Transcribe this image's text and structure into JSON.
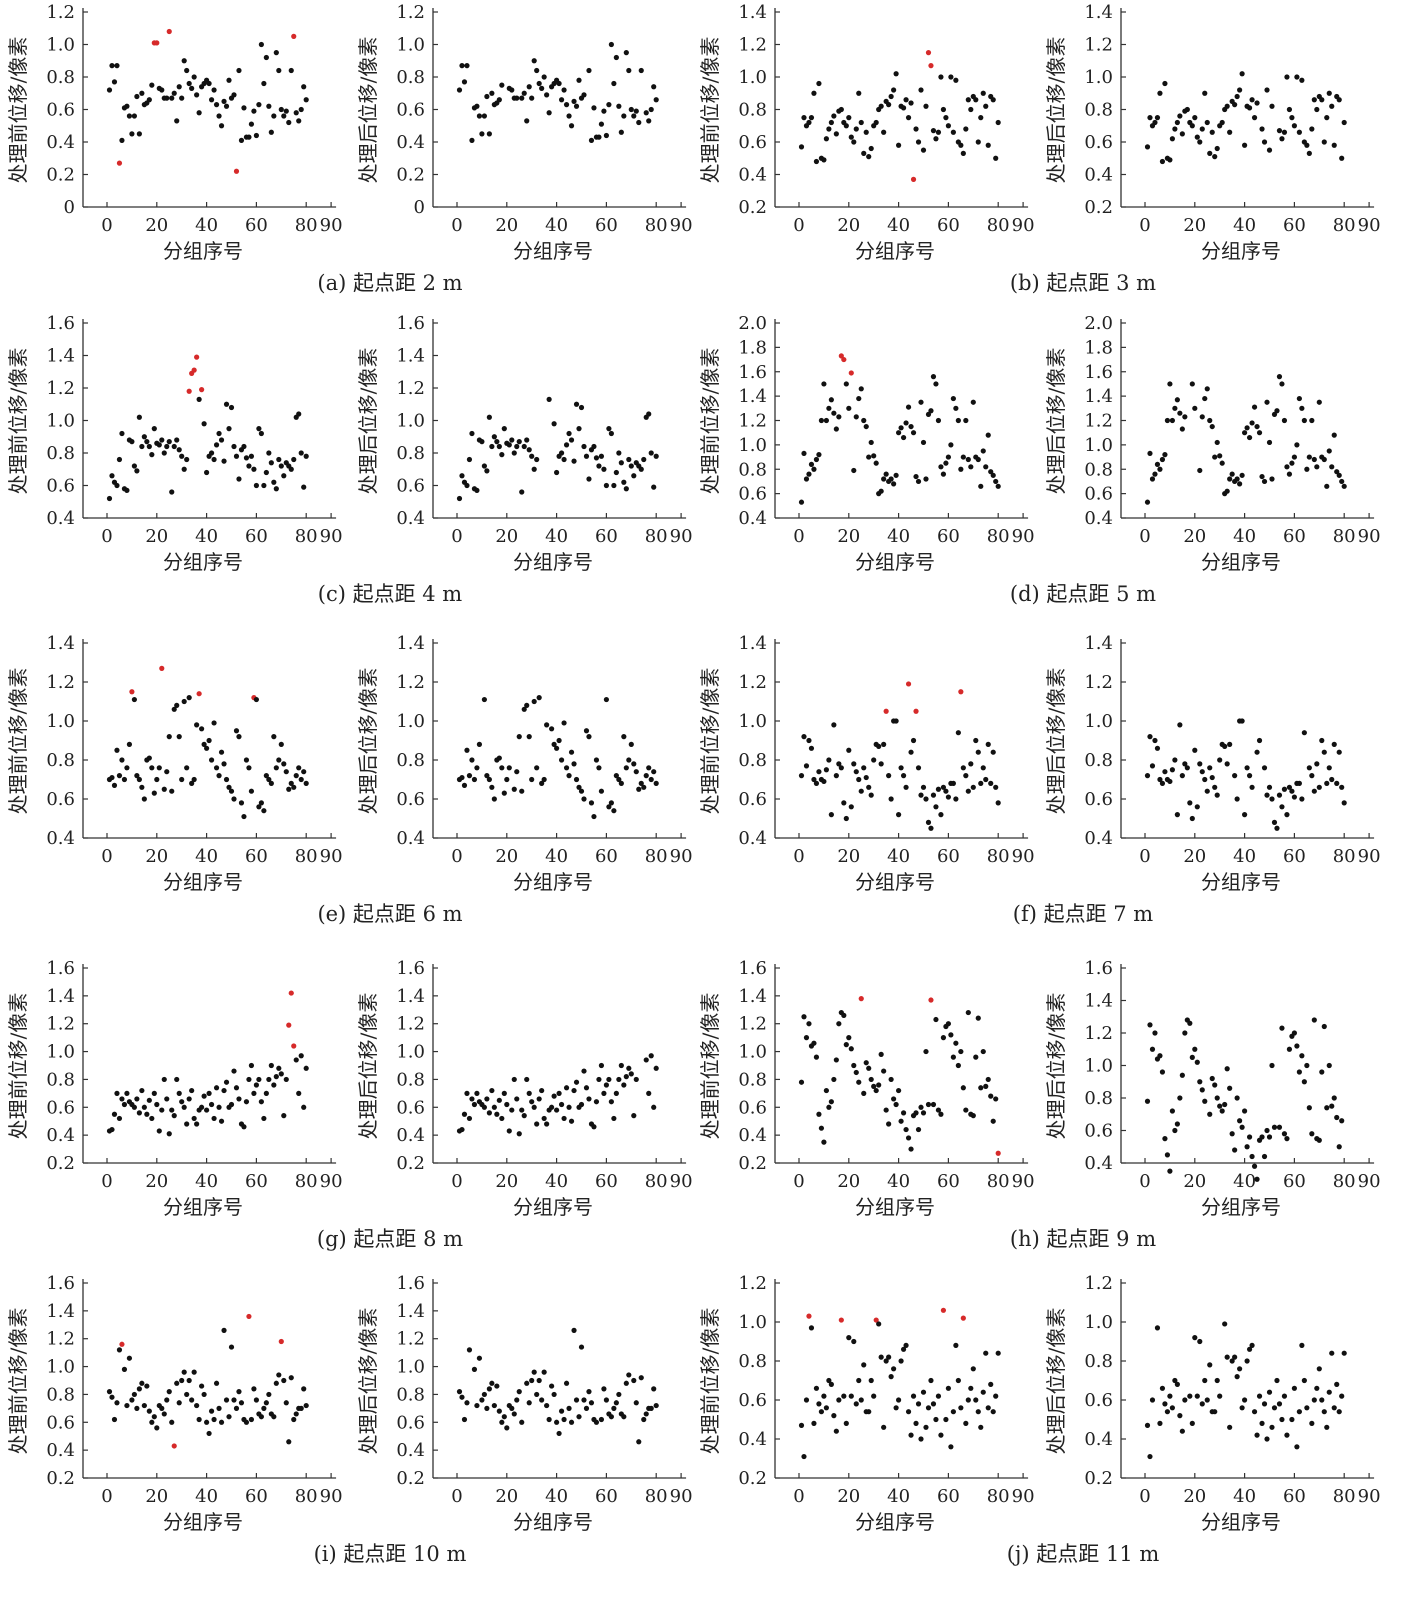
{
  "chart_data": {
    "type": "scatter",
    "xlabel": "分组序号",
    "ylabel_before": "处理前位移/像素",
    "ylabel_after": "处理后位移/像素",
    "xticks": [
      0,
      20,
      40,
      60,
      80,
      90
    ],
    "xlim": [
      -10,
      92
    ],
    "normal_color": "#111111",
    "outlier_color": "#d62a2a",
    "note": "x values are group numbers 1..80; after-panels show the before data with the outlier points removed",
    "panels": [
      {
        "caption": "(a) 起点距 2 m",
        "ylim_before": [
          0,
          1.2
        ],
        "ylim_after": [
          0,
          1.2
        ],
        "step": 0.2,
        "outliers": [
          5,
          19,
          20,
          25,
          52,
          75
        ],
        "values": [
          0.72,
          0.87,
          0.77,
          0.87,
          0.27,
          0.41,
          0.61,
          0.62,
          0.56,
          0.45,
          0.56,
          0.68,
          0.45,
          0.7,
          0.63,
          0.64,
          0.66,
          0.75,
          1.01,
          1.01,
          0.73,
          0.72,
          0.67,
          0.67,
          1.08,
          0.67,
          0.7,
          0.53,
          0.74,
          0.67,
          0.9,
          0.84,
          0.76,
          0.73,
          0.8,
          0.69,
          0.58,
          0.74,
          0.76,
          0.78,
          0.76,
          0.66,
          0.72,
          0.63,
          0.56,
          0.5,
          0.65,
          0.62,
          0.78,
          0.67,
          0.69,
          0.22,
          0.84,
          0.41,
          0.61,
          0.43,
          0.43,
          0.51,
          0.59,
          0.44,
          0.63,
          1.0,
          0.76,
          0.92,
          0.62,
          0.46,
          0.56,
          0.95,
          0.84,
          0.6,
          0.56,
          0.59,
          0.52,
          0.84,
          1.05,
          0.58,
          0.53,
          0.6,
          0.74,
          0.66
        ]
      },
      {
        "caption": "(b) 起点距 3 m",
        "ylim_before": [
          0.2,
          1.4
        ],
        "ylim_after": [
          0.2,
          1.4
        ],
        "step": 0.2,
        "outliers": [
          46,
          52,
          53
        ],
        "values": [
          0.57,
          0.75,
          0.7,
          0.72,
          0.75,
          0.9,
          0.48,
          0.96,
          0.5,
          0.49,
          0.62,
          0.68,
          0.72,
          0.76,
          0.65,
          0.79,
          0.8,
          0.72,
          0.7,
          0.75,
          0.63,
          0.6,
          0.68,
          0.9,
          0.72,
          0.53,
          0.66,
          0.51,
          0.56,
          0.7,
          0.72,
          0.8,
          0.82,
          0.66,
          0.85,
          0.83,
          0.88,
          0.92,
          1.02,
          0.58,
          0.82,
          0.81,
          0.86,
          0.75,
          0.84,
          0.37,
          0.68,
          0.6,
          0.92,
          0.55,
          0.82,
          1.15,
          1.07,
          0.67,
          0.62,
          0.66,
          1.0,
          0.8,
          0.75,
          0.7,
          1.0,
          0.66,
          0.98,
          0.6,
          0.58,
          0.53,
          0.68,
          0.86,
          0.8,
          0.88,
          0.86,
          0.6,
          0.75,
          0.9,
          0.82,
          0.58,
          0.88,
          0.86,
          0.5,
          0.72
        ]
      },
      {
        "caption": "(c) 起点距 4 m",
        "ylim_before": [
          0.4,
          1.6
        ],
        "ylim_after": [
          0.4,
          1.6
        ],
        "step": 0.2,
        "outliers": [
          33,
          34,
          35,
          36,
          38
        ],
        "values": [
          0.52,
          0.66,
          0.62,
          0.6,
          0.76,
          0.92,
          0.58,
          0.57,
          0.88,
          0.87,
          0.72,
          0.69,
          1.02,
          0.84,
          0.9,
          0.87,
          0.84,
          0.79,
          0.95,
          0.86,
          0.85,
          0.88,
          0.8,
          0.84,
          0.87,
          0.56,
          0.84,
          0.88,
          0.82,
          0.78,
          0.7,
          0.76,
          1.18,
          1.29,
          1.31,
          1.39,
          1.13,
          1.19,
          0.98,
          0.68,
          0.78,
          0.8,
          0.76,
          0.85,
          0.92,
          0.88,
          0.75,
          1.1,
          0.95,
          1.08,
          0.84,
          0.78,
          0.64,
          0.82,
          0.84,
          0.77,
          0.72,
          0.78,
          0.7,
          0.6,
          0.95,
          0.92,
          0.6,
          0.68,
          0.8,
          0.74,
          0.62,
          0.58,
          0.76,
          0.72,
          0.66,
          0.74,
          0.72,
          0.7,
          0.76,
          1.02,
          1.04,
          0.8,
          0.59,
          0.78
        ]
      },
      {
        "caption": "(d) 起点距 5 m",
        "ylim_before": [
          0.4,
          2.0
        ],
        "ylim_after": [
          0.4,
          2.0
        ],
        "step": 0.2,
        "outliers": [
          17,
          18,
          21
        ],
        "values": [
          0.53,
          0.93,
          0.72,
          0.76,
          0.84,
          0.8,
          0.88,
          0.92,
          1.2,
          1.5,
          1.2,
          1.3,
          1.37,
          1.26,
          1.13,
          1.23,
          1.73,
          1.7,
          1.5,
          1.3,
          1.59,
          0.79,
          1.23,
          1.38,
          1.46,
          1.2,
          1.15,
          0.9,
          1.02,
          0.91,
          0.85,
          0.6,
          0.62,
          0.72,
          0.76,
          0.7,
          0.72,
          0.68,
          0.75,
          1.1,
          1.14,
          1.06,
          1.18,
          1.31,
          1.15,
          1.1,
          0.74,
          0.7,
          1.35,
          1.02,
          0.72,
          1.25,
          1.28,
          1.56,
          1.5,
          1.2,
          0.82,
          0.76,
          0.85,
          0.9,
          1.0,
          1.38,
          1.3,
          1.2,
          0.8,
          0.9,
          1.2,
          0.88,
          0.82,
          1.35,
          0.9,
          0.88,
          0.66,
          0.95,
          0.82,
          1.08,
          0.78,
          0.75,
          0.7,
          0.66
        ]
      },
      {
        "caption": "(e) 起点距 6 m",
        "ylim_before": [
          0.4,
          1.4
        ],
        "ylim_after": [
          0.4,
          1.4
        ],
        "step": 0.2,
        "outliers": [
          10,
          22,
          37,
          59
        ],
        "values": [
          0.7,
          0.71,
          0.67,
          0.85,
          0.72,
          0.8,
          0.7,
          0.76,
          0.88,
          1.15,
          1.11,
          0.72,
          0.7,
          0.66,
          0.6,
          0.8,
          0.81,
          0.76,
          0.63,
          0.7,
          0.76,
          1.27,
          0.65,
          0.74,
          0.92,
          0.64,
          1.06,
          1.08,
          0.92,
          0.7,
          1.1,
          0.76,
          1.12,
          0.68,
          0.7,
          0.98,
          1.14,
          0.96,
          0.88,
          0.86,
          0.9,
          0.8,
          0.99,
          0.76,
          0.72,
          0.84,
          0.78,
          0.7,
          0.66,
          0.64,
          0.6,
          0.95,
          0.92,
          0.58,
          0.51,
          0.8,
          0.76,
          0.64,
          1.12,
          1.11,
          0.56,
          0.58,
          0.54,
          0.72,
          0.7,
          0.68,
          0.92,
          0.76,
          0.8,
          0.88,
          0.78,
          0.74,
          0.65,
          0.68,
          0.66,
          0.72,
          0.76,
          0.7,
          0.74,
          0.68
        ]
      },
      {
        "caption": "(f) 起点距 7 m",
        "ylim_before": [
          0.4,
          1.4
        ],
        "ylim_after": [
          0.4,
          1.4
        ],
        "step": 0.2,
        "outliers": [
          35,
          44,
          47,
          65
        ],
        "values": [
          0.72,
          0.92,
          0.77,
          0.9,
          0.86,
          0.7,
          0.68,
          0.74,
          0.7,
          0.69,
          0.75,
          0.8,
          0.52,
          0.98,
          0.72,
          0.78,
          0.76,
          0.58,
          0.5,
          0.85,
          0.56,
          0.78,
          0.74,
          0.7,
          0.64,
          0.76,
          0.71,
          0.66,
          0.62,
          0.8,
          0.88,
          0.87,
          0.78,
          0.88,
          1.05,
          0.72,
          0.6,
          1.0,
          1.0,
          0.52,
          0.76,
          0.72,
          0.66,
          1.19,
          0.84,
          0.9,
          1.05,
          0.76,
          0.62,
          0.66,
          0.6,
          0.48,
          0.45,
          0.62,
          0.56,
          0.65,
          0.52,
          0.66,
          0.64,
          0.61,
          0.68,
          0.68,
          0.6,
          0.94,
          1.15,
          0.76,
          0.72,
          0.64,
          0.78,
          0.66,
          0.9,
          0.84,
          0.68,
          0.76,
          0.7,
          0.88,
          0.68,
          0.84,
          0.66,
          0.58
        ]
      },
      {
        "caption": "(g) 起点距 8 m",
        "ylim_before": [
          0.2,
          1.6
        ],
        "ylim_after": [
          0.2,
          1.6
        ],
        "step": 0.2,
        "outliers": [
          73,
          74,
          75
        ],
        "values": [
          0.43,
          0.44,
          0.55,
          0.7,
          0.52,
          0.66,
          0.62,
          0.7,
          0.64,
          0.62,
          0.6,
          0.66,
          0.56,
          0.72,
          0.6,
          0.55,
          0.65,
          0.52,
          0.7,
          0.62,
          0.43,
          0.58,
          0.8,
          0.66,
          0.41,
          0.58,
          0.54,
          0.8,
          0.7,
          0.64,
          0.6,
          0.48,
          0.66,
          0.72,
          0.52,
          0.48,
          0.58,
          0.6,
          0.68,
          0.58,
          0.7,
          0.62,
          0.52,
          0.74,
          0.6,
          0.5,
          0.72,
          0.78,
          0.6,
          0.62,
          0.86,
          0.74,
          0.66,
          0.48,
          0.46,
          0.64,
          0.8,
          0.9,
          0.7,
          0.76,
          0.8,
          0.64,
          0.52,
          0.7,
          0.8,
          0.9,
          0.76,
          0.82,
          0.88,
          0.84,
          0.54,
          0.8,
          1.19,
          1.42,
          1.04,
          0.94,
          0.7,
          0.97,
          0.6,
          0.88
        ]
      },
      {
        "caption": "(h) 起点距 9 m",
        "ylim_before": [
          0.2,
          1.6
        ],
        "ylim_after": [
          0.4,
          1.6
        ],
        "step": 0.2,
        "outliers": [
          25,
          53,
          80
        ],
        "values": [
          0.78,
          1.25,
          1.1,
          1.2,
          1.04,
          1.06,
          0.96,
          0.55,
          0.45,
          0.35,
          0.72,
          0.6,
          0.64,
          0.8,
          0.94,
          1.2,
          1.28,
          1.26,
          1.05,
          1.1,
          1.02,
          0.9,
          0.85,
          0.78,
          1.38,
          0.7,
          0.92,
          0.88,
          0.8,
          0.75,
          0.72,
          0.76,
          0.98,
          0.86,
          0.58,
          0.48,
          0.8,
          0.66,
          0.62,
          0.72,
          0.5,
          0.56,
          0.44,
          0.38,
          0.3,
          0.54,
          0.56,
          0.44,
          0.6,
          0.56,
          1.0,
          0.62,
          1.37,
          0.62,
          1.23,
          0.58,
          0.55,
          1.1,
          1.18,
          1.2,
          1.12,
          0.96,
          1.06,
          0.9,
          1.0,
          0.74,
          0.58,
          1.28,
          0.55,
          0.54,
          0.96,
          1.24,
          0.74,
          1.0,
          0.75,
          0.8,
          0.68,
          0.5,
          0.66,
          0.27
        ]
      },
      {
        "caption": "(i) 起点距 10 m",
        "ylim_before": [
          0.2,
          1.6
        ],
        "ylim_after": [
          0.2,
          1.6
        ],
        "step": 0.2,
        "outliers": [
          6,
          27,
          57,
          70
        ],
        "values": [
          0.82,
          0.78,
          0.62,
          0.74,
          1.12,
          1.16,
          0.98,
          0.72,
          1.06,
          0.76,
          0.8,
          0.7,
          0.84,
          0.88,
          0.72,
          0.86,
          0.68,
          0.6,
          0.64,
          0.56,
          0.72,
          0.7,
          0.66,
          0.76,
          0.82,
          0.6,
          0.43,
          0.88,
          0.74,
          0.9,
          0.96,
          0.8,
          0.9,
          0.76,
          0.96,
          0.72,
          0.62,
          0.86,
          0.8,
          0.6,
          0.52,
          0.68,
          0.62,
          0.88,
          0.7,
          0.6,
          1.26,
          0.76,
          0.64,
          1.14,
          0.76,
          0.7,
          0.82,
          0.74,
          0.62,
          0.6,
          1.36,
          0.62,
          0.84,
          0.76,
          0.66,
          0.64,
          0.7,
          0.74,
          0.8,
          0.66,
          0.64,
          0.88,
          0.94,
          1.18,
          0.9,
          0.74,
          0.46,
          0.92,
          0.62,
          0.66,
          0.7,
          0.7,
          0.84,
          0.72
        ]
      },
      {
        "caption": "(j) 起点距 11 m",
        "ylim_before": [
          0.2,
          1.2
        ],
        "ylim_after": [
          0.2,
          1.2
        ],
        "step": 0.2,
        "outliers": [
          4,
          17,
          31,
          58,
          66
        ],
        "values": [
          0.47,
          0.31,
          0.6,
          1.03,
          0.97,
          0.48,
          0.66,
          0.58,
          0.54,
          0.62,
          0.56,
          0.7,
          0.68,
          0.52,
          0.44,
          0.6,
          1.01,
          0.62,
          0.48,
          0.92,
          0.62,
          0.9,
          0.58,
          0.7,
          0.6,
          0.78,
          0.54,
          0.54,
          0.7,
          0.62,
          1.01,
          0.99,
          0.82,
          0.46,
          0.8,
          0.82,
          0.72,
          0.76,
          0.56,
          0.6,
          0.8,
          0.86,
          0.88,
          0.54,
          0.42,
          0.62,
          0.48,
          0.58,
          0.4,
          0.64,
          0.46,
          0.56,
          0.7,
          0.58,
          0.5,
          0.62,
          0.42,
          1.06,
          0.5,
          0.66,
          0.36,
          0.54,
          0.88,
          0.7,
          0.56,
          1.02,
          0.48,
          0.6,
          0.66,
          0.76,
          0.6,
          0.54,
          0.46,
          0.64,
          0.84,
          0.56,
          0.68,
          0.54,
          0.62,
          0.84
        ]
      }
    ]
  }
}
